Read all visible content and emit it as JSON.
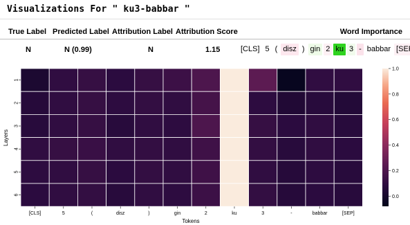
{
  "header": {
    "title": "Visualizations For \" ku3-babbar \""
  },
  "table": {
    "headers": [
      "True Label",
      "Predicted Label",
      "Attribution Label",
      "Attribution Score",
      "Word Importance"
    ],
    "row": {
      "true_label": "N",
      "predicted_label": "N (0.99)",
      "attribution_label": "N",
      "attribution_score": "1.15"
    },
    "words": [
      {
        "text": "[CLS]",
        "bg": "#ffffff"
      },
      {
        "text": "5",
        "bg": "#ffffff"
      },
      {
        "text": "(",
        "bg": "#ffffff"
      },
      {
        "text": "disz",
        "bg": "#fde7ee"
      },
      {
        "text": ")",
        "bg": "#ffffff"
      },
      {
        "text": "gin",
        "bg": "#eefbe8"
      },
      {
        "text": "2",
        "bg": "#fdf0f4"
      },
      {
        "text": "ku",
        "bg": "#2fd31f"
      },
      {
        "text": "3",
        "bg": "#f1fbec"
      },
      {
        "text": "-",
        "bg": "#fbe2ea"
      },
      {
        "text": "babbar",
        "bg": "#ffffff"
      },
      {
        "text": "[SEP]",
        "bg": "#fdf0f4"
      }
    ]
  },
  "heatmap": {
    "ylabel": "Layers",
    "xlabel": "Tokens",
    "y_ticks": [
      "1",
      "2",
      "3",
      "4",
      "5",
      "6"
    ],
    "x_ticks": [
      "[CLS]",
      "5",
      "(",
      "disz",
      ")",
      "gin",
      "2",
      "ku",
      "3",
      "-",
      "babbar",
      "[SEP]"
    ],
    "colorbar_ticks": [
      "1.0",
      "0.8",
      "0.6",
      "0.4",
      "0.2",
      "0.0"
    ],
    "vmin": -0.08,
    "vmax": 1.0,
    "values": [
      [
        0.02,
        0.1,
        0.12,
        0.08,
        0.12,
        0.14,
        0.2,
        1.0,
        0.25,
        -0.06,
        0.1,
        0.1
      ],
      [
        0.06,
        0.1,
        0.12,
        0.09,
        0.11,
        0.1,
        0.17,
        1.0,
        0.09,
        0.04,
        0.07,
        0.05
      ],
      [
        0.07,
        0.1,
        0.12,
        0.07,
        0.1,
        0.09,
        0.2,
        1.0,
        0.12,
        0.08,
        0.1,
        0.07
      ],
      [
        0.1,
        0.12,
        0.13,
        0.1,
        0.11,
        0.1,
        0.15,
        1.0,
        0.11,
        0.07,
        0.1,
        0.08
      ],
      [
        0.09,
        0.1,
        0.12,
        0.08,
        0.11,
        0.1,
        0.15,
        1.0,
        0.1,
        0.06,
        0.09,
        0.07
      ],
      [
        0.08,
        0.1,
        0.11,
        0.07,
        0.1,
        0.09,
        0.14,
        1.0,
        0.11,
        0.06,
        0.08,
        0.07
      ]
    ]
  }
}
